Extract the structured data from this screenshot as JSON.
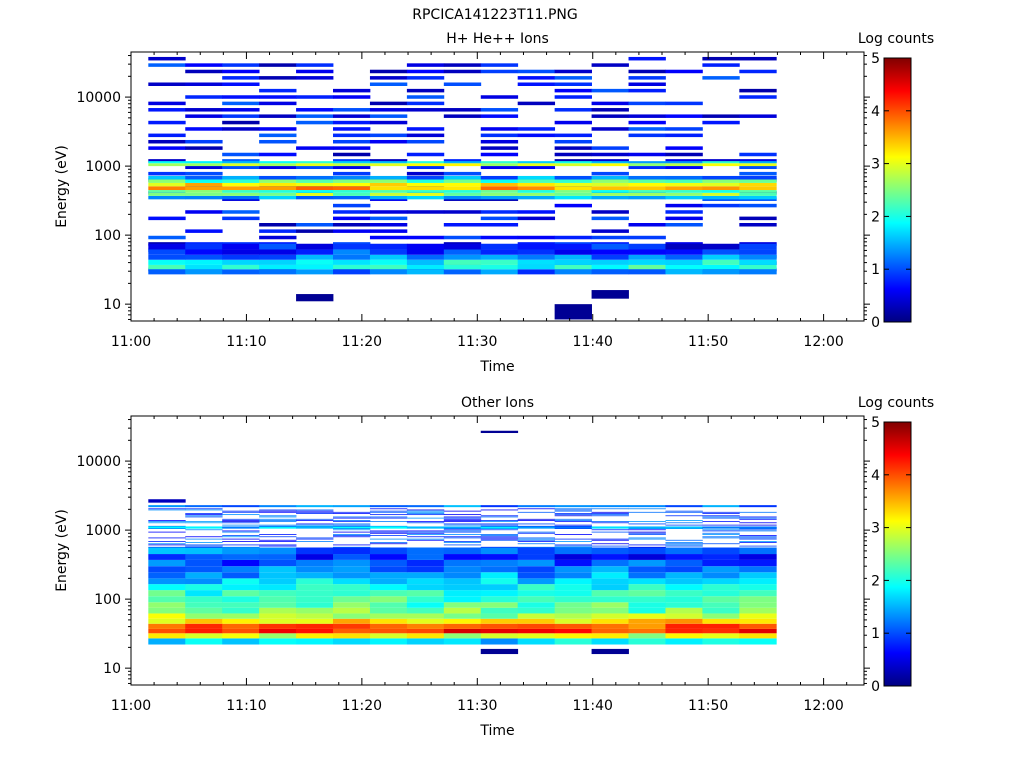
{
  "figure_title": "RPCICA141223T11.PNG",
  "colormap": [
    "#000080",
    "#0000ff",
    "#0080ff",
    "#00ffff",
    "#80ff80",
    "#ffff00",
    "#ff8000",
    "#ff0000",
    "#800000"
  ],
  "chart_data": [
    {
      "type": "heatmap",
      "title": "H+ He++ Ions",
      "xlabel": "Time",
      "ylabel": "Energy (eV)",
      "x_tick_labels": [
        "11:00",
        "11:10",
        "11:20",
        "11:30",
        "11:40",
        "11:50",
        "12:00"
      ],
      "xlim_minutes_after_11": [
        0,
        63.5
      ],
      "y_scale": "log",
      "ylim": [
        5.7,
        45000
      ],
      "y_tick_labels": [
        "10",
        "100",
        "1000",
        "10000"
      ],
      "colorbar": {
        "label": "Log counts",
        "range": [
          0,
          5
        ],
        "tick_labels": [
          "0",
          "1",
          "2",
          "3",
          "4",
          "5"
        ]
      },
      "bands": [
        {
          "lo": 27,
          "hi": 32,
          "value": 1.2
        },
        {
          "lo": 32,
          "hi": 37,
          "value": 2.0
        },
        {
          "lo": 37,
          "hi": 44,
          "value": 1.9
        },
        {
          "lo": 44,
          "hi": 52,
          "value": 1.3
        },
        {
          "lo": 52,
          "hi": 62,
          "value": 0.9
        },
        {
          "lo": 62,
          "hi": 75,
          "value": 0.7
        },
        {
          "lo": 330,
          "hi": 370,
          "value": 1.4
        },
        {
          "lo": 370,
          "hi": 410,
          "value": 2.6
        },
        {
          "lo": 410,
          "hi": 450,
          "value": 2.3
        },
        {
          "lo": 450,
          "hi": 510,
          "value": 3.6
        },
        {
          "lo": 510,
          "hi": 570,
          "value": 3.3
        },
        {
          "lo": 570,
          "hi": 640,
          "value": 2.2
        },
        {
          "lo": 640,
          "hi": 720,
          "value": 1.3
        },
        {
          "lo": 1000,
          "hi": 1100,
          "value": 2.9
        },
        {
          "lo": 1100,
          "hi": 1180,
          "value": 1.7
        }
      ],
      "sparse_range": [
        30,
        42000
      ],
      "sparse_seed": 7,
      "sparse_density": 0.5,
      "sparse_level": 0.2,
      "extra_blocks": [
        {
          "t0": 14.3,
          "t1": 17.5,
          "lo": 11,
          "hi": 14,
          "value": 0.1
        },
        {
          "t0": 36.7,
          "t1": 39.9,
          "lo": 6,
          "hi": 10,
          "value": 0.1
        },
        {
          "t0": 39.9,
          "t1": 43.1,
          "lo": 12,
          "hi": 16,
          "value": 0.1
        }
      ],
      "time_bins_minutes": [
        1.5,
        4.7,
        7.9,
        11.1,
        14.3,
        17.5,
        20.7,
        23.9,
        27.1,
        30.3,
        33.5,
        36.7,
        39.9,
        43.1,
        46.3,
        49.5,
        52.7
      ]
    },
    {
      "type": "heatmap",
      "title": "Other Ions",
      "xlabel": "Time",
      "ylabel": "Energy (eV)",
      "x_tick_labels": [
        "11:00",
        "11:10",
        "11:20",
        "11:30",
        "11:40",
        "11:50",
        "12:00"
      ],
      "xlim_minutes_after_11": [
        0,
        63.5
      ],
      "y_scale": "log",
      "ylim": [
        5.7,
        45000
      ],
      "y_tick_labels": [
        "10",
        "100",
        "1000",
        "10000"
      ],
      "colorbar": {
        "label": "Log counts",
        "range": [
          0,
          5
        ],
        "tick_labels": [
          "0",
          "1",
          "2",
          "3",
          "4",
          "5"
        ]
      },
      "bands": [
        {
          "lo": 22,
          "hi": 27,
          "value": 1.7
        },
        {
          "lo": 27,
          "hi": 32,
          "value": 2.9
        },
        {
          "lo": 32,
          "hi": 37,
          "value": 4.2
        },
        {
          "lo": 37,
          "hi": 44,
          "value": 4.0
        },
        {
          "lo": 44,
          "hi": 52,
          "value": 3.3
        },
        {
          "lo": 52,
          "hi": 62,
          "value": 2.7
        },
        {
          "lo": 62,
          "hi": 75,
          "value": 2.4
        },
        {
          "lo": 75,
          "hi": 90,
          "value": 2.3
        },
        {
          "lo": 90,
          "hi": 110,
          "value": 2.2
        },
        {
          "lo": 110,
          "hi": 135,
          "value": 2.1
        },
        {
          "lo": 135,
          "hi": 165,
          "value": 1.9
        },
        {
          "lo": 165,
          "hi": 200,
          "value": 1.7
        },
        {
          "lo": 200,
          "hi": 245,
          "value": 1.4
        },
        {
          "lo": 245,
          "hi": 300,
          "value": 1.2
        },
        {
          "lo": 300,
          "hi": 370,
          "value": 1.0
        },
        {
          "lo": 370,
          "hi": 450,
          "value": 0.8
        },
        {
          "lo": 450,
          "hi": 560,
          "value": 1.2
        },
        {
          "lo": 1050,
          "hi": 1130,
          "value": 1.5
        },
        {
          "lo": 2150,
          "hi": 2300,
          "value": 1.2
        }
      ],
      "sparse_range": [
        560,
        2100
      ],
      "sparse_seed": 13,
      "sparse_density": 0.45,
      "sparse_level": 0.5,
      "extra_blocks": [
        {
          "t0": 30.3,
          "t1": 33.5,
          "lo": 25500,
          "hi": 27500,
          "value": 0.1
        },
        {
          "t0": 30.3,
          "t1": 33.5,
          "lo": 16,
          "hi": 19,
          "value": 0.1
        },
        {
          "t0": 39.9,
          "t1": 43.1,
          "lo": 16,
          "hi": 19,
          "value": 0.1
        },
        {
          "t0": 1.5,
          "t1": 4.7,
          "lo": 2500,
          "hi": 2800,
          "value": 0.3
        }
      ],
      "time_bins_minutes": [
        1.5,
        4.7,
        7.9,
        11.1,
        14.3,
        17.5,
        20.7,
        23.9,
        27.1,
        30.3,
        33.5,
        36.7,
        39.9,
        43.1,
        46.3,
        49.5,
        52.7
      ]
    }
  ]
}
